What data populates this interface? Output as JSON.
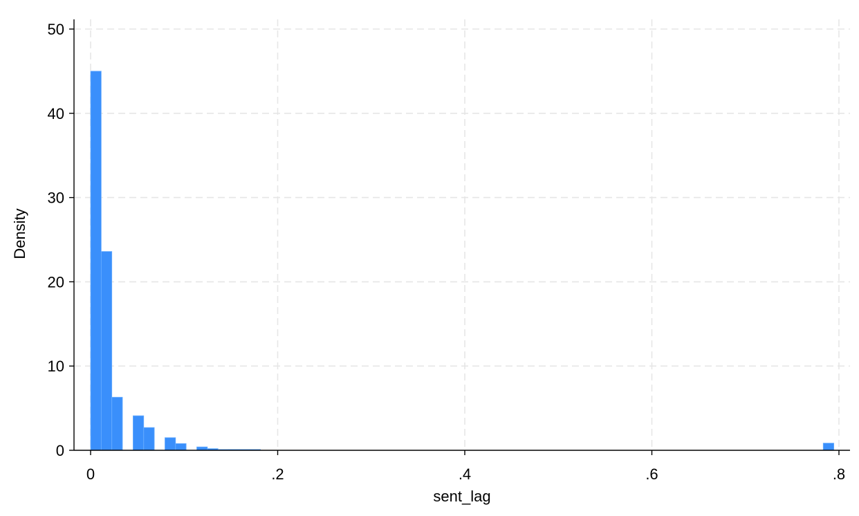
{
  "chart_data": {
    "type": "bar",
    "subtype": "histogram",
    "title": "",
    "xlabel": "sent_lag",
    "ylabel": "Density",
    "xlim": [
      0,
      0.8
    ],
    "ylim": [
      0,
      50
    ],
    "xticks": [
      0,
      0.2,
      0.4,
      0.6,
      0.8
    ],
    "xtick_labels": [
      "0",
      ".2",
      ".4",
      ".6",
      ".8"
    ],
    "yticks": [
      0,
      10,
      20,
      30,
      40,
      50
    ],
    "ytick_labels": [
      "0",
      "10",
      "20",
      "30",
      "40",
      "50"
    ],
    "grid": true,
    "bar_color": "#3a8ffb",
    "bin_width": 0.01135,
    "bins": [
      {
        "start": 0.0,
        "end": 0.01135,
        "density": 45.0
      },
      {
        "start": 0.01135,
        "end": 0.0227,
        "density": 23.6
      },
      {
        "start": 0.0227,
        "end": 0.03405,
        "density": 6.3
      },
      {
        "start": 0.03405,
        "end": 0.0454,
        "density": 0.0
      },
      {
        "start": 0.0454,
        "end": 0.05675,
        "density": 4.1
      },
      {
        "start": 0.05675,
        "end": 0.0681,
        "density": 2.7
      },
      {
        "start": 0.0681,
        "end": 0.07945,
        "density": 0.0
      },
      {
        "start": 0.07945,
        "end": 0.0908,
        "density": 1.5
      },
      {
        "start": 0.0908,
        "end": 0.10215,
        "density": 0.8
      },
      {
        "start": 0.10215,
        "end": 0.1135,
        "density": 0.0
      },
      {
        "start": 0.1135,
        "end": 0.12485,
        "density": 0.4
      },
      {
        "start": 0.12485,
        "end": 0.1362,
        "density": 0.2
      },
      {
        "start": 0.1362,
        "end": 0.14755,
        "density": 0.05
      },
      {
        "start": 0.14755,
        "end": 0.1589,
        "density": 0.1
      },
      {
        "start": 0.1589,
        "end": 0.17025,
        "density": 0.05
      },
      {
        "start": 0.17025,
        "end": 0.1816,
        "density": 0.05
      },
      {
        "start": 0.7832,
        "end": 0.79455,
        "density": 0.85
      }
    ]
  }
}
